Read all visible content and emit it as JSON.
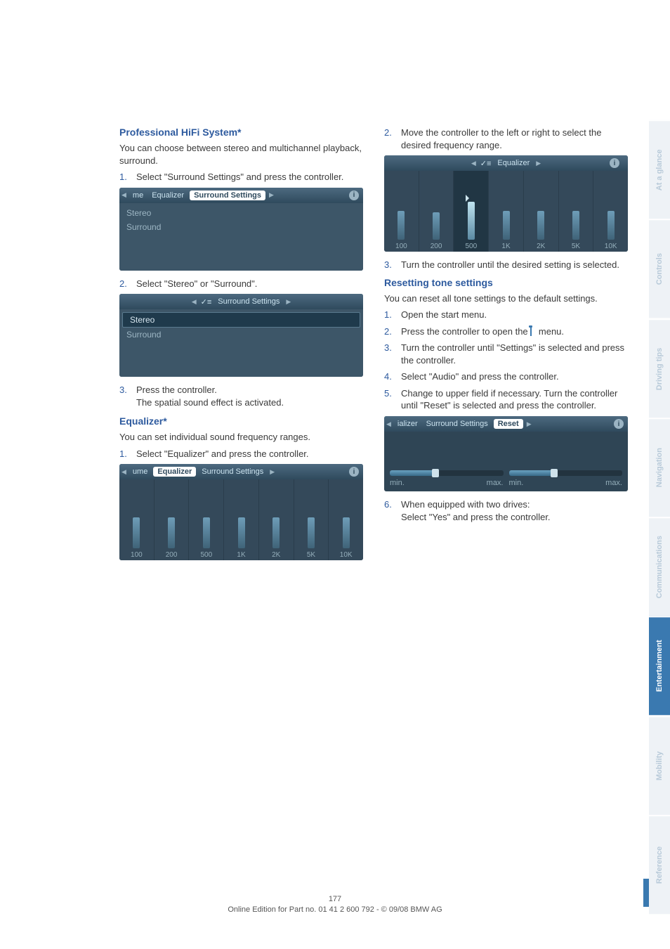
{
  "left_col": {
    "sec1_title": "Professional HiFi System*",
    "sec1_intro": "You can choose between stereo and multichannel playback, surround.",
    "sec1_step1_num": "1.",
    "sec1_step1_text": "Select \"Surround Settings\" and press the controller.",
    "ss1_crumb1": "me",
    "ss1_crumb2": "Equalizer",
    "ss1_crumb3": "Surround Settings",
    "ss1_row1": "Stereo",
    "ss1_row2": "Surround",
    "sec1_step2_num": "2.",
    "sec1_step2_text": "Select \"Stereo\" or \"Surround\".",
    "ss2_title": "Surround Settings",
    "ss2_row1": "Stereo",
    "ss2_row2": "Surround",
    "sec1_step3_num": "3.",
    "sec1_step3_text": "Press the controller.",
    "sec1_step3_sub": "The spatial sound effect is activated.",
    "sec2_title": "Equalizer*",
    "sec2_intro": "You can set individual sound frequency ranges.",
    "sec2_step1_num": "1.",
    "sec2_step1_text": "Select \"Equalizer\" and press the controller.",
    "ss3_crumb1": "ume",
    "ss3_crumb2": "Equalizer",
    "ss3_crumb3": "Surround Settings",
    "eq_labels": [
      "100",
      "200",
      "500",
      "1K",
      "2K",
      "5K",
      "10K"
    ],
    "eq_heights_pct": [
      45,
      45,
      45,
      45,
      45,
      45,
      45
    ]
  },
  "right_col": {
    "sec1_step2_num": "2.",
    "sec1_step2_text": "Move the controller to the left or right to select the desired frequency range.",
    "ss4_title": "Equalizer",
    "eq_labels": [
      "100",
      "200",
      "500",
      "1K",
      "2K",
      "5K",
      "10K"
    ],
    "eq_heights_pct": [
      42,
      40,
      55,
      42,
      42,
      42,
      42
    ],
    "eq_selected_index": 2,
    "sec1_step3_num": "3.",
    "sec1_step3_text": "Turn the controller until the desired setting is selected.",
    "sec2_title": "Resetting tone settings",
    "sec2_intro": "You can reset all tone settings to the default settings.",
    "steps": [
      {
        "num": "1.",
        "color": "blue",
        "text": "Open the start menu."
      },
      {
        "num": "2.",
        "color": "blue",
        "text": "Press the controller to open the "
      },
      {
        "num": "3.",
        "color": "blue",
        "text": "Turn the controller until \"Settings\" is selected and press the controller."
      },
      {
        "num": "4.",
        "color": "blue",
        "text": "Select \"Audio\" and press the controller."
      },
      {
        "num": "5.",
        "color": "blue",
        "text": "Change to upper field if necessary. Turn the controller until \"Reset\" is selected and press the controller."
      }
    ],
    "step2_suffix": " menu.",
    "ss5_crumb1": "ializer",
    "ss5_crumb2": "Surround Settings",
    "ss5_crumb3": "Reset",
    "slider1_min": "min.",
    "slider1_max": "max.",
    "slider2_min": "min.",
    "slider2_max": "max.",
    "slider1_fill_pct": 40,
    "slider2_fill_pct": 40,
    "step6_num": "6.",
    "step6_text": "When equipped with two drives:",
    "step6_sub": "Select \"Yes\" and press the controller."
  },
  "footer": {
    "page": "177",
    "line": "Online Edition for Part no. 01 41 2 600 792 - © 09/08 BMW AG"
  },
  "tabs": [
    "At a glance",
    "Controls",
    "Driving tips",
    "Navigation",
    "Communications",
    "Entertainment",
    "Mobility",
    "Reference"
  ],
  "active_tab_index": 5,
  "colors": {
    "heading": "#2d5a9e",
    "body": "#3a3a3a",
    "tab_active_bg": "#3a79b0",
    "tab_inactive_fg": "#b8cad9",
    "ss_bg": "#2f4a5d"
  }
}
